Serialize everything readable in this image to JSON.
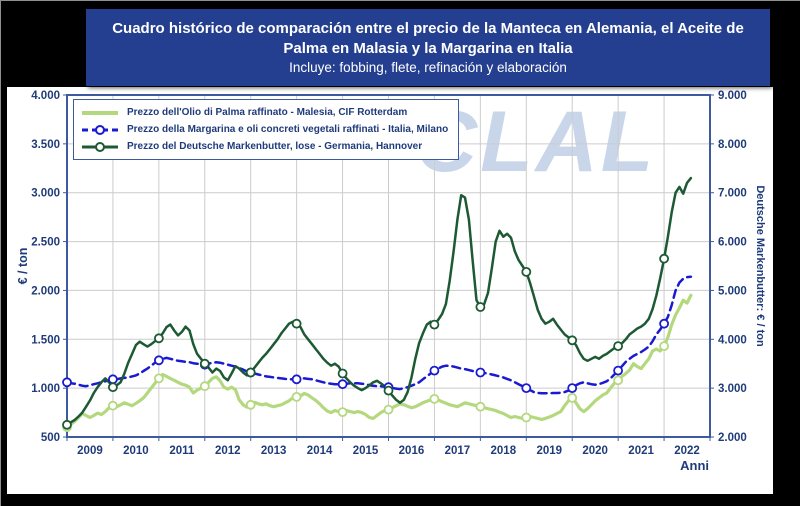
{
  "title": {
    "line1": "Cuadro histórico de comparación entre el precio de la Manteca en Alemania, el Aceite de",
    "line2": "Palma en Malasia y la Margarina en Italia",
    "line3": "Incluye: fobbing, flete, refinación y elaboración"
  },
  "watermark": "CLAL",
  "colors": {
    "background": "#000000",
    "panel": "#ffffff",
    "banner": "#253f90",
    "axis_text": "#1f3b7a",
    "grid": "#cccccc",
    "frame": "#3d5a9e",
    "watermark": "#c9d6ea"
  },
  "chart_data": {
    "type": "line",
    "frequency": "monthly",
    "x_start_year": 2009,
    "x_end_year": 2023,
    "marker_interval_months": 12,
    "grid": true,
    "legend_position": "top-left",
    "x_label": "Anni",
    "x_tick_labels": [
      "2009",
      "2010",
      "2011",
      "2012",
      "2013",
      "2014",
      "2015",
      "2016",
      "2017",
      "2018",
      "2019",
      "2020",
      "2021",
      "2022"
    ],
    "left_axis": {
      "title": "€ / ton",
      "min": 500,
      "max": 4000,
      "ticks": [
        [
          4000,
          "4.000"
        ],
        [
          3500,
          "3.500"
        ],
        [
          3000,
          "3.000"
        ],
        [
          2500,
          "2.500"
        ],
        [
          2000,
          "2.000"
        ],
        [
          1500,
          "1.500"
        ],
        [
          1000,
          "1.000"
        ],
        [
          500,
          "500"
        ]
      ]
    },
    "right_axis": {
      "title": "Deutsche Markenbutter: € / ton",
      "min": 2000,
      "max": 9000,
      "ticks": [
        [
          9000,
          "9.000"
        ],
        [
          8000,
          "8.000"
        ],
        [
          7000,
          "7.000"
        ],
        [
          6000,
          "6.000"
        ],
        [
          5000,
          "5.000"
        ],
        [
          4000,
          "4.000"
        ],
        [
          3000,
          "3.000"
        ],
        [
          2000,
          "2.000"
        ]
      ]
    },
    "series": [
      {
        "name": "Prezzo dell'Olio di Palma raffinato - Malesia, CIF Rotterdam",
        "color": "#b4d87e",
        "axis": "left",
        "style": "solid",
        "line_width": 3.2,
        "values": [
          600,
          630,
          660,
          700,
          740,
          720,
          700,
          720,
          745,
          730,
          760,
          800,
          820,
          810,
          830,
          850,
          835,
          820,
          845,
          870,
          900,
          950,
          1000,
          1050,
          1100,
          1140,
          1120,
          1100,
          1080,
          1060,
          1040,
          1030,
          1010,
          950,
          980,
          1000,
          1020,
          1060,
          1100,
          1115,
          1075,
          1010,
          990,
          1010,
          985,
          880,
          830,
          805,
          830,
          855,
          840,
          830,
          840,
          820,
          810,
          820,
          830,
          850,
          870,
          900,
          910,
          920,
          945,
          930,
          900,
          875,
          840,
          800,
          765,
          750,
          770,
          760,
          755,
          770,
          760,
          750,
          760,
          750,
          730,
          700,
          690,
          720,
          750,
          770,
          780,
          800,
          820,
          840,
          830,
          815,
          800,
          810,
          830,
          850,
          865,
          880,
          890,
          880,
          860,
          845,
          830,
          820,
          810,
          830,
          850,
          840,
          830,
          820,
          810,
          800,
          790,
          780,
          770,
          755,
          740,
          720,
          700,
          710,
          700,
          690,
          700,
          710,
          700,
          690,
          680,
          690,
          705,
          720,
          740,
          760,
          820,
          870,
          900,
          850,
          790,
          760,
          790,
          830,
          870,
          900,
          930,
          950,
          1000,
          1050,
          1080,
          1120,
          1150,
          1185,
          1250,
          1220,
          1200,
          1250,
          1300,
          1380,
          1400,
          1380,
          1430,
          1520,
          1650,
          1750,
          1820,
          1900,
          1870,
          1950
        ]
      },
      {
        "name": "Prezzo della Margarina e oli concreti vegetali raffinati - Italia, Milano",
        "color": "#1a1ad1",
        "axis": "left",
        "style": "dashed",
        "line_width": 2.5,
        "values": [
          1060,
          1050,
          1045,
          1035,
          1025,
          1020,
          1030,
          1040,
          1050,
          1060,
          1070,
          1080,
          1090,
          1090,
          1100,
          1105,
          1110,
          1120,
          1130,
          1150,
          1175,
          1200,
          1230,
          1260,
          1285,
          1300,
          1310,
          1300,
          1290,
          1280,
          1275,
          1270,
          1265,
          1255,
          1250,
          1245,
          1240,
          1250,
          1260,
          1265,
          1260,
          1250,
          1240,
          1230,
          1220,
          1205,
          1190,
          1170,
          1160,
          1150,
          1140,
          1130,
          1120,
          1115,
          1110,
          1105,
          1100,
          1095,
          1090,
          1090,
          1090,
          1100,
          1100,
          1095,
          1090,
          1080,
          1070,
          1060,
          1050,
          1045,
          1040,
          1040,
          1040,
          1045,
          1050,
          1050,
          1050,
          1045,
          1040,
          1030,
          1025,
          1020,
          1020,
          1015,
          1010,
          1000,
          995,
          990,
          1000,
          1010,
          1025,
          1040,
          1060,
          1090,
          1120,
          1150,
          1180,
          1200,
          1220,
          1230,
          1230,
          1220,
          1210,
          1200,
          1195,
          1185,
          1175,
          1165,
          1160,
          1155,
          1150,
          1140,
          1130,
          1120,
          1110,
          1095,
          1080,
          1060,
          1040,
          1020,
          1000,
          980,
          960,
          950,
          948,
          947,
          948,
          950,
          950,
          952,
          960,
          975,
          1000,
          1030,
          1050,
          1060,
          1050,
          1040,
          1035,
          1040,
          1055,
          1070,
          1100,
          1140,
          1180,
          1225,
          1270,
          1300,
          1330,
          1350,
          1370,
          1395,
          1425,
          1480,
          1550,
          1600,
          1660,
          1730,
          1850,
          2000,
          2080,
          2120,
          2135,
          2140
        ]
      },
      {
        "name": "Prezzo del Deutsche Markenbutter, lose - Germania, Hannover",
        "color": "#1d5a34",
        "axis": "right",
        "style": "solid",
        "line_width": 2.5,
        "values": [
          2250,
          2300,
          2350,
          2420,
          2500,
          2620,
          2750,
          2900,
          3020,
          3120,
          3200,
          3120,
          3020,
          3060,
          3120,
          3300,
          3520,
          3700,
          3880,
          3950,
          3900,
          3850,
          3900,
          3960,
          4020,
          4120,
          4250,
          4300,
          4180,
          4080,
          4150,
          4260,
          4180,
          3900,
          3700,
          3600,
          3500,
          3420,
          3320,
          3400,
          3350,
          3220,
          3160,
          3300,
          3450,
          3400,
          3320,
          3260,
          3320,
          3420,
          3520,
          3620,
          3700,
          3800,
          3900,
          4000,
          4120,
          4220,
          4320,
          4360,
          4320,
          4250,
          4100,
          4000,
          3900,
          3800,
          3700,
          3600,
          3520,
          3460,
          3500,
          3440,
          3300,
          3200,
          3120,
          3050,
          3000,
          2960,
          3000,
          3060,
          3120,
          3150,
          3100,
          3040,
          2950,
          2850,
          2760,
          2700,
          2760,
          2920,
          3220,
          3600,
          3920,
          4120,
          4300,
          4360,
          4300,
          4400,
          4520,
          4720,
          5200,
          5800,
          6450,
          6950,
          6900,
          6450,
          5600,
          4800,
          4660,
          4720,
          4950,
          5450,
          6000,
          6220,
          6100,
          6160,
          6080,
          5800,
          5620,
          5500,
          5380,
          5150,
          4880,
          4600,
          4420,
          4320,
          4360,
          4420,
          4300,
          4200,
          4100,
          4040,
          3980,
          3880,
          3720,
          3600,
          3560,
          3600,
          3640,
          3600,
          3660,
          3700,
          3760,
          3820,
          3860,
          3920,
          4000,
          4100,
          4160,
          4220,
          4260,
          4320,
          4420,
          4620,
          4900,
          5250,
          5650,
          6100,
          6600,
          7000,
          7120,
          6980,
          7200,
          7300
        ]
      }
    ]
  }
}
